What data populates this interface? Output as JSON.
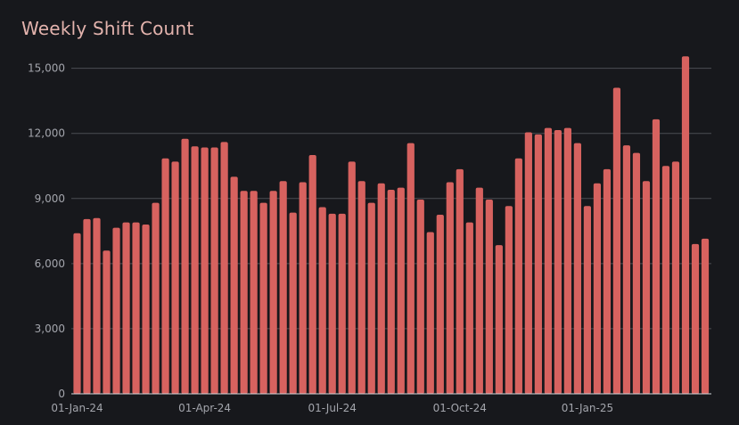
{
  "chart_data": {
    "type": "bar",
    "title": "Weekly Shift Count",
    "xlabel": "",
    "ylabel": "",
    "ylim": [
      0,
      15600
    ],
    "yticks": [
      0,
      3000,
      6000,
      9000,
      12000,
      15000
    ],
    "ytick_labels": [
      "0",
      "3,000",
      "6,000",
      "9,000",
      "12,000",
      "15,000"
    ],
    "xtick_labels": [
      "01-Jan-24",
      "01-Apr-24",
      "01-Jul-24",
      "01-Oct-24",
      "01-Jan-25"
    ],
    "xtick_index": [
      0,
      13,
      26,
      39,
      52
    ],
    "grid": true,
    "bar_color": "#d7625f",
    "values": [
      7400,
      8050,
      8100,
      6600,
      7650,
      7900,
      7900,
      7800,
      8800,
      10850,
      10700,
      11750,
      11400,
      11350,
      11350,
      11600,
      10000,
      9350,
      9350,
      8800,
      9350,
      9800,
      8350,
      9750,
      11000,
      8600,
      8300,
      8300,
      10700,
      9800,
      8800,
      9700,
      9400,
      9500,
      11550,
      8950,
      7450,
      8250,
      9750,
      10350,
      7900,
      9500,
      8950,
      6850,
      8650,
      10850,
      12050,
      11950,
      12250,
      12150,
      12250,
      11550,
      8650,
      9700,
      10350,
      14100,
      11450,
      11100,
      9800,
      12650,
      10500,
      10700,
      15550,
      6900,
      7150
    ]
  }
}
